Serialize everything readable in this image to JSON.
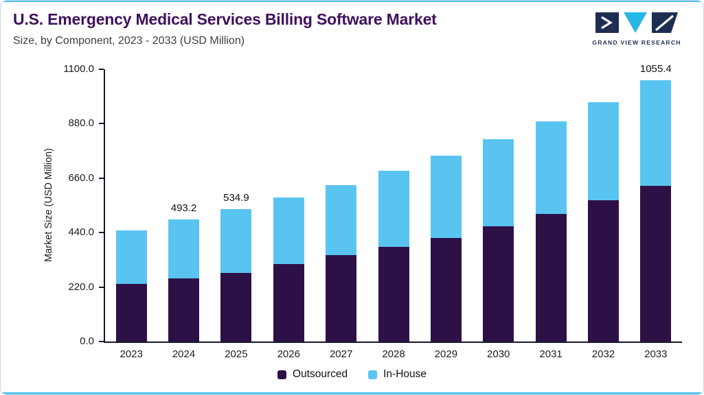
{
  "header": {
    "title": "U.S. Emergency Medical Services Billing Software Market",
    "subtitle": "Size, by Component, 2023 - 2033 (USD Million)",
    "logo_text": "GRAND VIEW RESEARCH"
  },
  "chart_data": {
    "type": "bar",
    "stacked": true,
    "title": "U.S. Emergency Medical Services Billing Software Market Size, by Component, 2023 - 2033 (USD Million)",
    "categories": [
      "2023",
      "2024",
      "2025",
      "2026",
      "2027",
      "2028",
      "2029",
      "2030",
      "2031",
      "2032",
      "2033"
    ],
    "series": [
      {
        "name": "Outsourced",
        "color": "#2d1146",
        "values": [
          231.8,
          254.0,
          276.3,
          312.6,
          348.8,
          382.2,
          419.0,
          465.8,
          515.9,
          571.6,
          628.0
        ]
      },
      {
        "name": "In-House",
        "color": "#59c4f0",
        "values": [
          216.0,
          239.2,
          258.6,
          269.1,
          284.0,
          306.5,
          330.8,
          351.0,
          373.2,
          396.1,
          427.4
        ]
      }
    ],
    "totals_labels": [
      "",
      "493.2",
      "534.9",
      "",
      "",
      "",
      "",
      "",
      "",
      "",
      "1055.4"
    ],
    "ylabel": "Market Size (USD Million)",
    "yticks": [
      "0.0",
      "220.0",
      "440.0",
      "660.0",
      "880.0",
      "1100.0"
    ],
    "ylim": [
      0,
      1100
    ],
    "grid": false,
    "legend_position": "bottom"
  },
  "colors": {
    "accent_blue": "#53c2ef",
    "title": "#40105e",
    "subtitle": "#3d3d3d",
    "axis": "#15152e",
    "outsourced": "#2d1146",
    "in_house": "#59c4f0",
    "logo_navy": "#1d2e52",
    "logo_cyan": "#27b6e8",
    "border": "#c9d6e2"
  }
}
